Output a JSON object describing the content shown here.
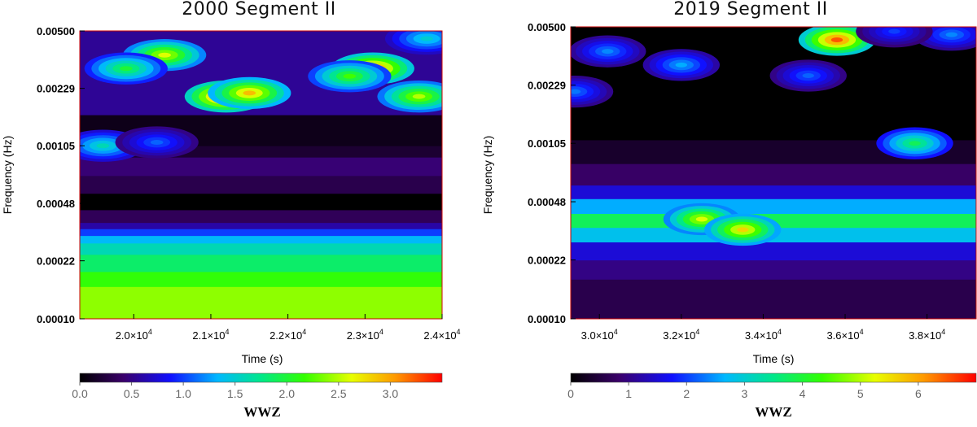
{
  "chart_data": [
    {
      "type": "heatmap",
      "title": "2000 Segment II",
      "xlabel": "Time (s)",
      "ylabel": "Frequency (Hz)",
      "xlim": [
        19300,
        24000
      ],
      "y_scale": "log",
      "ylim": [
        0.0001,
        0.005
      ],
      "x_ticks": [
        {
          "value": 20000,
          "mantissa": "2.0×10",
          "exp": "4"
        },
        {
          "value": 21000,
          "mantissa": "2.1×10",
          "exp": "4"
        },
        {
          "value": 22000,
          "mantissa": "2.2×10",
          "exp": "4"
        },
        {
          "value": 23000,
          "mantissa": "2.3×10",
          "exp": "4"
        },
        {
          "value": 24000,
          "mantissa": "2.4×10",
          "exp": "4"
        }
      ],
      "y_ticks": [
        {
          "value": 0.005,
          "label": "0.00500"
        },
        {
          "value": 0.00229,
          "label": "0.00229"
        },
        {
          "value": 0.00105,
          "label": "0.00105"
        },
        {
          "value": 0.00048,
          "label": "0.00048"
        },
        {
          "value": 0.00022,
          "label": "0.00022"
        },
        {
          "value": 0.0001,
          "label": "0.00010"
        }
      ],
      "colorbar": {
        "label": "WWZ",
        "range": [
          0,
          3.5
        ],
        "ticks": [
          {
            "value": 0.0,
            "label": "0.0"
          },
          {
            "value": 0.5,
            "label": "0.5"
          },
          {
            "value": 1.0,
            "label": "1.0"
          },
          {
            "value": 1.5,
            "label": "1.5"
          },
          {
            "value": 2.0,
            "label": "2.0"
          },
          {
            "value": 2.5,
            "label": "2.5"
          },
          {
            "value": 3.0,
            "label": "3.0"
          }
        ]
      },
      "base_levels": [
        {
          "f_min": 0.0001,
          "f_max": 0.000155,
          "value": 2.4
        },
        {
          "f_min": 0.000155,
          "f_max": 0.00019,
          "value": 2.15
        },
        {
          "f_min": 0.00019,
          "f_max": 0.00024,
          "value": 1.85
        },
        {
          "f_min": 0.00024,
          "f_max": 0.00028,
          "value": 1.6
        },
        {
          "f_min": 0.00028,
          "f_max": 0.00031,
          "value": 1.35
        },
        {
          "f_min": 0.00031,
          "f_max": 0.00034,
          "value": 1.0
        },
        {
          "f_min": 0.00034,
          "f_max": 0.00037,
          "value": 0.6
        },
        {
          "f_min": 0.00037,
          "f_max": 0.00044,
          "value": 0.35
        },
        {
          "f_min": 0.00044,
          "f_max": 0.00055,
          "value": 0.0
        },
        {
          "f_min": 0.00055,
          "f_max": 0.0007,
          "value": 0.3
        },
        {
          "f_min": 0.0007,
          "f_max": 0.0009,
          "value": 0.45
        },
        {
          "f_min": 0.0009,
          "f_max": 0.00105,
          "value": 0.2
        },
        {
          "f_min": 0.00105,
          "f_max": 0.0016,
          "value": 0.1
        },
        {
          "f_min": 0.0016,
          "f_max": 0.005,
          "value": 0.55
        }
      ],
      "blobs": [
        {
          "t": 21200,
          "f": 0.00205,
          "value": 3.4
        },
        {
          "t": 21500,
          "f": 0.00215,
          "value": 2.9
        },
        {
          "t": 23700,
          "f": 0.00205,
          "value": 2.5
        },
        {
          "t": 20400,
          "f": 0.0036,
          "value": 2.6
        },
        {
          "t": 23100,
          "f": 0.003,
          "value": 3.2
        },
        {
          "t": 22800,
          "f": 0.0027,
          "value": 2.2
        },
        {
          "t": 19900,
          "f": 0.003,
          "value": 2.0
        },
        {
          "t": 19600,
          "f": 0.00105,
          "value": 1.6
        },
        {
          "t": 20300,
          "f": 0.0011,
          "value": 1.1
        },
        {
          "t": 23800,
          "f": 0.0045,
          "value": 1.5
        }
      ]
    },
    {
      "type": "heatmap",
      "title": "2019 Segment II",
      "xlabel": "Time (s)",
      "ylabel": "Frequency (Hz)",
      "xlim": [
        29300,
        39200
      ],
      "y_scale": "log",
      "ylim": [
        0.0001,
        0.005
      ],
      "x_ticks": [
        {
          "value": 30000,
          "mantissa": "3.0×10",
          "exp": "4"
        },
        {
          "value": 32000,
          "mantissa": "3.2×10",
          "exp": "4"
        },
        {
          "value": 34000,
          "mantissa": "3.4×10",
          "exp": "4"
        },
        {
          "value": 36000,
          "mantissa": "3.6×10",
          "exp": "4"
        },
        {
          "value": 38000,
          "mantissa": "3.8×10",
          "exp": "4"
        }
      ],
      "y_ticks": [
        {
          "value": 0.005,
          "label": "0.00500"
        },
        {
          "value": 0.00229,
          "label": "0.00229"
        },
        {
          "value": 0.00105,
          "label": "0.00105"
        },
        {
          "value": 0.00048,
          "label": "0.00048"
        },
        {
          "value": 0.00022,
          "label": "0.00022"
        },
        {
          "value": 0.0001,
          "label": "0.00010"
        }
      ],
      "colorbar": {
        "label": "WWZ",
        "range": [
          0,
          7
        ],
        "ticks": [
          {
            "value": 0,
            "label": "0"
          },
          {
            "value": 1,
            "label": "1"
          },
          {
            "value": 2,
            "label": "2"
          },
          {
            "value": 3,
            "label": "3"
          },
          {
            "value": 4,
            "label": "4"
          },
          {
            "value": 5,
            "label": "5"
          },
          {
            "value": 6,
            "label": "6"
          }
        ]
      },
      "base_levels": [
        {
          "f_min": 0.0001,
          "f_max": 0.00017,
          "value": 0.6
        },
        {
          "f_min": 0.00017,
          "f_max": 0.00022,
          "value": 1.0
        },
        {
          "f_min": 0.00022,
          "f_max": 0.00028,
          "value": 1.5
        },
        {
          "f_min": 0.00028,
          "f_max": 0.00034,
          "value": 2.8
        },
        {
          "f_min": 0.00034,
          "f_max": 0.00041,
          "value": 3.8
        },
        {
          "f_min": 0.00041,
          "f_max": 0.0005,
          "value": 2.6
        },
        {
          "f_min": 0.0005,
          "f_max": 0.0006,
          "value": 1.5
        },
        {
          "f_min": 0.0006,
          "f_max": 0.0008,
          "value": 0.8
        },
        {
          "f_min": 0.0008,
          "f_max": 0.0011,
          "value": 0.35
        },
        {
          "f_min": 0.0011,
          "f_max": 0.005,
          "value": 0.0
        }
      ],
      "blobs": [
        {
          "t": 32500,
          "f": 0.00038,
          "value": 5.2
        },
        {
          "t": 33500,
          "f": 0.00033,
          "value": 5.6
        },
        {
          "t": 35800,
          "f": 0.0042,
          "value": 6.5
        },
        {
          "t": 32000,
          "f": 0.003,
          "value": 2.6
        },
        {
          "t": 30200,
          "f": 0.0036,
          "value": 2.4
        },
        {
          "t": 35100,
          "f": 0.0026,
          "value": 2.2
        },
        {
          "t": 37700,
          "f": 0.00105,
          "value": 3.8
        },
        {
          "t": 29400,
          "f": 0.0021,
          "value": 2.3
        },
        {
          "t": 38600,
          "f": 0.0045,
          "value": 2.4
        },
        {
          "t": 37200,
          "f": 0.0047,
          "value": 2.0
        }
      ]
    }
  ]
}
